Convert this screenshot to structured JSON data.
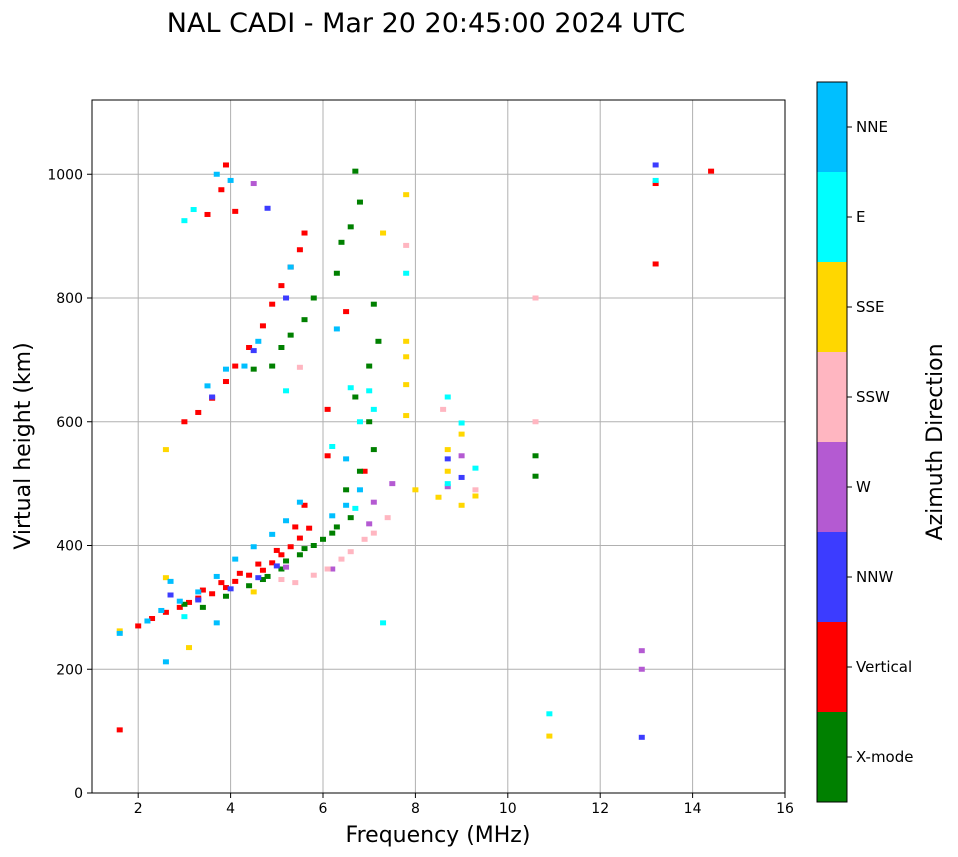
{
  "chart_data": {
    "type": "scatter",
    "title": "NAL CADI - Mar 20 20:45:00 2024 UTC",
    "xlabel": "Frequency (MHz)",
    "ylabel": "Virtual height (km)",
    "xlim": [
      1,
      16
    ],
    "ylim": [
      0,
      1120
    ],
    "xticks": [
      2,
      4,
      6,
      8,
      10,
      12,
      14,
      16
    ],
    "yticks": [
      0,
      200,
      400,
      600,
      800,
      1000
    ],
    "grid": true,
    "colorbar": {
      "label": "Azimuth Direction",
      "categories": [
        {
          "name": "X-mode",
          "color": "#008000"
        },
        {
          "name": "Vertical",
          "color": "#ff0000"
        },
        {
          "name": "NNW",
          "color": "#3c3cff"
        },
        {
          "name": "W",
          "color": "#b45ad2"
        },
        {
          "name": "SSW",
          "color": "#ffb6c1"
        },
        {
          "name": "SSE",
          "color": "#ffd700"
        },
        {
          "name": "E",
          "color": "#00ffff"
        },
        {
          "name": "NNE",
          "color": "#00bfff"
        }
      ]
    },
    "series": [
      {
        "name": "Vertical",
        "color": "#ff0000",
        "points": [
          [
            1.6,
            102
          ],
          [
            2.0,
            270
          ],
          [
            2.3,
            282
          ],
          [
            2.6,
            292
          ],
          [
            2.9,
            300
          ],
          [
            3.1,
            308
          ],
          [
            3.3,
            315
          ],
          [
            3.6,
            322
          ],
          [
            3.9,
            332
          ],
          [
            4.1,
            342
          ],
          [
            4.4,
            352
          ],
          [
            4.7,
            360
          ],
          [
            4.9,
            372
          ],
          [
            5.1,
            385
          ],
          [
            5.3,
            398
          ],
          [
            5.5,
            412
          ],
          [
            5.7,
            428
          ],
          [
            3.4,
            328
          ],
          [
            3.8,
            340
          ],
          [
            4.2,
            355
          ],
          [
            4.6,
            370
          ],
          [
            5.0,
            392
          ],
          [
            5.4,
            430
          ],
          [
            5.6,
            465
          ],
          [
            3.0,
            600
          ],
          [
            3.3,
            615
          ],
          [
            3.6,
            638
          ],
          [
            3.9,
            665
          ],
          [
            4.1,
            690
          ],
          [
            4.4,
            720
          ],
          [
            4.7,
            755
          ],
          [
            4.9,
            790
          ],
          [
            5.1,
            820
          ],
          [
            5.3,
            850
          ],
          [
            5.5,
            878
          ],
          [
            5.6,
            905
          ],
          [
            3.5,
            935
          ],
          [
            3.8,
            975
          ],
          [
            4.1,
            940
          ],
          [
            3.9,
            1015
          ],
          [
            6.1,
            620
          ],
          [
            6.1,
            545
          ],
          [
            6.5,
            778
          ],
          [
            6.9,
            520
          ],
          [
            13.2,
            985
          ],
          [
            13.2,
            855
          ],
          [
            14.4,
            1005
          ]
        ]
      },
      {
        "name": "X-mode",
        "color": "#008000",
        "points": [
          [
            3.0,
            305
          ],
          [
            3.4,
            300
          ],
          [
            3.9,
            318
          ],
          [
            4.4,
            335
          ],
          [
            4.8,
            350
          ],
          [
            5.2,
            375
          ],
          [
            5.6,
            395
          ],
          [
            6.0,
            410
          ],
          [
            6.3,
            430
          ],
          [
            6.6,
            445
          ],
          [
            4.7,
            345
          ],
          [
            5.1,
            362
          ],
          [
            5.5,
            385
          ],
          [
            5.8,
            400
          ],
          [
            6.2,
            420
          ],
          [
            6.5,
            490
          ],
          [
            6.8,
            520
          ],
          [
            7.1,
            555
          ],
          [
            7.0,
            600
          ],
          [
            6.7,
            640
          ],
          [
            7.0,
            690
          ],
          [
            4.9,
            690
          ],
          [
            5.1,
            720
          ],
          [
            5.3,
            740
          ],
          [
            5.6,
            765
          ],
          [
            5.8,
            800
          ],
          [
            6.3,
            840
          ],
          [
            6.4,
            890
          ],
          [
            6.6,
            915
          ],
          [
            6.8,
            955
          ],
          [
            6.7,
            1005
          ],
          [
            10.6,
            512
          ],
          [
            10.6,
            545
          ],
          [
            7.2,
            730
          ],
          [
            7.1,
            790
          ],
          [
            4.5,
            685
          ]
        ]
      },
      {
        "name": "NNW",
        "color": "#3c3cff",
        "points": [
          [
            2.7,
            320
          ],
          [
            3.3,
            312
          ],
          [
            4.0,
            330
          ],
          [
            4.6,
            348
          ],
          [
            5.0,
            367
          ],
          [
            3.6,
            640
          ],
          [
            4.5,
            715
          ],
          [
            5.2,
            800
          ],
          [
            4.8,
            945
          ],
          [
            12.9,
            90
          ],
          [
            13.2,
            1015
          ],
          [
            8.7,
            540
          ],
          [
            9.0,
            510
          ]
        ]
      },
      {
        "name": "W",
        "color": "#b45ad2",
        "points": [
          [
            5.2,
            365
          ],
          [
            6.2,
            362
          ],
          [
            7.0,
            435
          ],
          [
            7.1,
            470
          ],
          [
            7.5,
            500
          ],
          [
            4.5,
            985
          ],
          [
            12.9,
            230
          ],
          [
            12.9,
            200
          ],
          [
            8.7,
            495
          ],
          [
            9.0,
            545
          ]
        ]
      },
      {
        "name": "SSW",
        "color": "#ffb6c1",
        "points": [
          [
            5.1,
            345
          ],
          [
            5.4,
            340
          ],
          [
            5.8,
            352
          ],
          [
            6.1,
            362
          ],
          [
            6.4,
            378
          ],
          [
            6.6,
            390
          ],
          [
            6.9,
            410
          ],
          [
            7.1,
            420
          ],
          [
            7.4,
            445
          ],
          [
            7.8,
            885
          ],
          [
            10.6,
            800
          ],
          [
            10.6,
            600
          ],
          [
            5.5,
            688
          ],
          [
            9.3,
            490
          ],
          [
            8.6,
            620
          ]
        ]
      },
      {
        "name": "SSE",
        "color": "#ffd700",
        "points": [
          [
            1.6,
            262
          ],
          [
            2.6,
            348
          ],
          [
            3.1,
            235
          ],
          [
            4.5,
            325
          ],
          [
            7.8,
            730
          ],
          [
            7.8,
            705
          ],
          [
            7.8,
            660
          ],
          [
            7.8,
            610
          ],
          [
            7.8,
            967
          ],
          [
            8.0,
            490
          ],
          [
            8.5,
            478
          ],
          [
            8.7,
            555
          ],
          [
            8.7,
            520
          ],
          [
            9.0,
            465
          ],
          [
            9.0,
            580
          ],
          [
            9.3,
            480
          ],
          [
            10.9,
            92
          ],
          [
            7.3,
            905
          ],
          [
            2.6,
            555
          ]
        ]
      },
      {
        "name": "E",
        "color": "#00ffff",
        "points": [
          [
            3.2,
            943
          ],
          [
            3.0,
            925
          ],
          [
            5.2,
            650
          ],
          [
            6.2,
            560
          ],
          [
            6.6,
            655
          ],
          [
            6.8,
            600
          ],
          [
            7.0,
            650
          ],
          [
            7.1,
            620
          ],
          [
            7.3,
            275
          ],
          [
            7.8,
            840
          ],
          [
            8.7,
            640
          ],
          [
            8.7,
            500
          ],
          [
            9.0,
            598
          ],
          [
            9.3,
            525
          ],
          [
            10.9,
            128
          ],
          [
            13.2,
            990
          ],
          [
            3.0,
            285
          ],
          [
            6.7,
            460
          ]
        ]
      },
      {
        "name": "NNE",
        "color": "#00bfff",
        "points": [
          [
            1.6,
            258
          ],
          [
            2.2,
            278
          ],
          [
            2.5,
            295
          ],
          [
            2.9,
            310
          ],
          [
            3.3,
            325
          ],
          [
            3.7,
            350
          ],
          [
            4.1,
            378
          ],
          [
            4.5,
            398
          ],
          [
            4.9,
            418
          ],
          [
            5.2,
            440
          ],
          [
            5.5,
            470
          ],
          [
            6.2,
            448
          ],
          [
            6.5,
            465
          ],
          [
            6.8,
            490
          ],
          [
            2.7,
            342
          ],
          [
            3.5,
            658
          ],
          [
            3.9,
            685
          ],
          [
            4.3,
            690
          ],
          [
            4.6,
            730
          ],
          [
            5.3,
            850
          ],
          [
            3.7,
            1000
          ],
          [
            4.0,
            990
          ],
          [
            2.6,
            212
          ],
          [
            3.7,
            275
          ],
          [
            6.3,
            750
          ],
          [
            6.5,
            540
          ]
        ]
      }
    ]
  }
}
